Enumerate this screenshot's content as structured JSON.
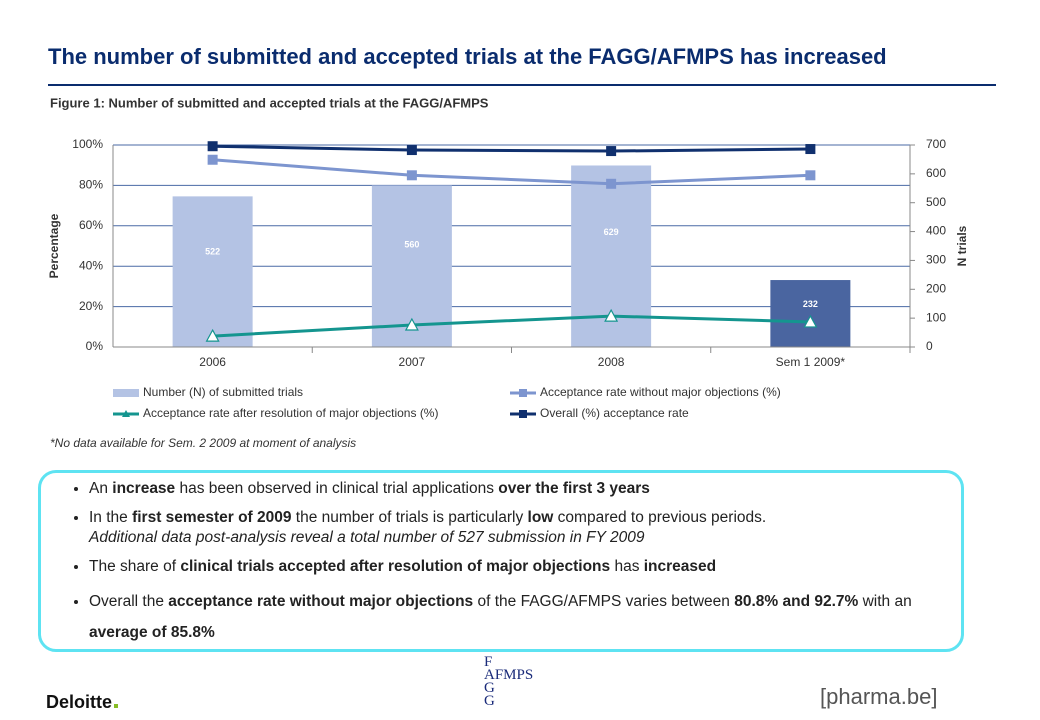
{
  "slide_title": "The number of submitted and accepted trials at the FAGG/AFMPS has increased",
  "chart_data": {
    "type": "bar-line",
    "title": "Figure 1: Number of submitted and accepted trials at the FAGG/AFMPS",
    "ylabel": "Percentage",
    "y2label": "N trials",
    "categories": [
      "2006",
      "2007",
      "2008",
      "Sem 1 2009*"
    ],
    "ylim": [
      0,
      100
    ],
    "yticks": [
      {
        "value": 0,
        "label": "0%"
      },
      {
        "value": 20,
        "label": "20%"
      },
      {
        "value": 40,
        "label": "40%"
      },
      {
        "value": 60,
        "label": "60%"
      },
      {
        "value": 80,
        "label": "80%"
      },
      {
        "value": 100,
        "label": "100%"
      }
    ],
    "y2lim": [
      0,
      700
    ],
    "y2ticks": [
      0,
      100,
      200,
      300,
      400,
      500,
      600,
      700
    ],
    "grid": true,
    "series": [
      {
        "name": "Number (N) of submitted trials",
        "type": "bar",
        "axis": "y2",
        "color": "#b4c3e4",
        "colors": [
          "#b4c3e4",
          "#b4c3e4",
          "#b4c3e4",
          "#4a65a0"
        ],
        "values": [
          522,
          560,
          629,
          232
        ]
      },
      {
        "name": "Acceptance rate without major objections (%)",
        "type": "line",
        "marker": "square",
        "color": "#7d95cf",
        "values": [
          92.7,
          85.0,
          80.8,
          85.0
        ]
      },
      {
        "name": "Acceptance rate after resolution of major objections (%)",
        "type": "line",
        "marker": "triangle",
        "color": "#14958f",
        "values": [
          5.4,
          10.9,
          15.3,
          12.4
        ]
      },
      {
        "name": "Overall (%) acceptance rate",
        "type": "line",
        "marker": "square",
        "color": "#10306e",
        "values": [
          99.4,
          97.5,
          97.0,
          98.0
        ]
      }
    ],
    "footnote": "*No data available for Sem. 2 2009 at moment of analysis"
  },
  "bullets": [
    [
      "An ",
      "increase",
      " has been observed in clinical trial applications ",
      "over the first 3 years"
    ],
    [
      "In the ",
      "first semester of 2009",
      " the number of trials is particularly ",
      "low",
      " compared to previous periods.",
      "Additional data post-analysis reveal a total number of 527 submission in FY 2009"
    ],
    [
      "The share of ",
      "clinical trials accepted after resolution of major objections",
      " has ",
      "increased"
    ],
    [
      "Overall the ",
      "acceptance rate without major objections",
      " of the FAGG/AFMPS varies between ",
      "80.8% and 92.7%",
      " with an ",
      "average of 85.8%"
    ]
  ],
  "logos": {
    "deloitte": "Deloitte",
    "afmps": [
      "F",
      "AFMPS",
      "G",
      "G"
    ],
    "pharma": "pharma.be"
  }
}
